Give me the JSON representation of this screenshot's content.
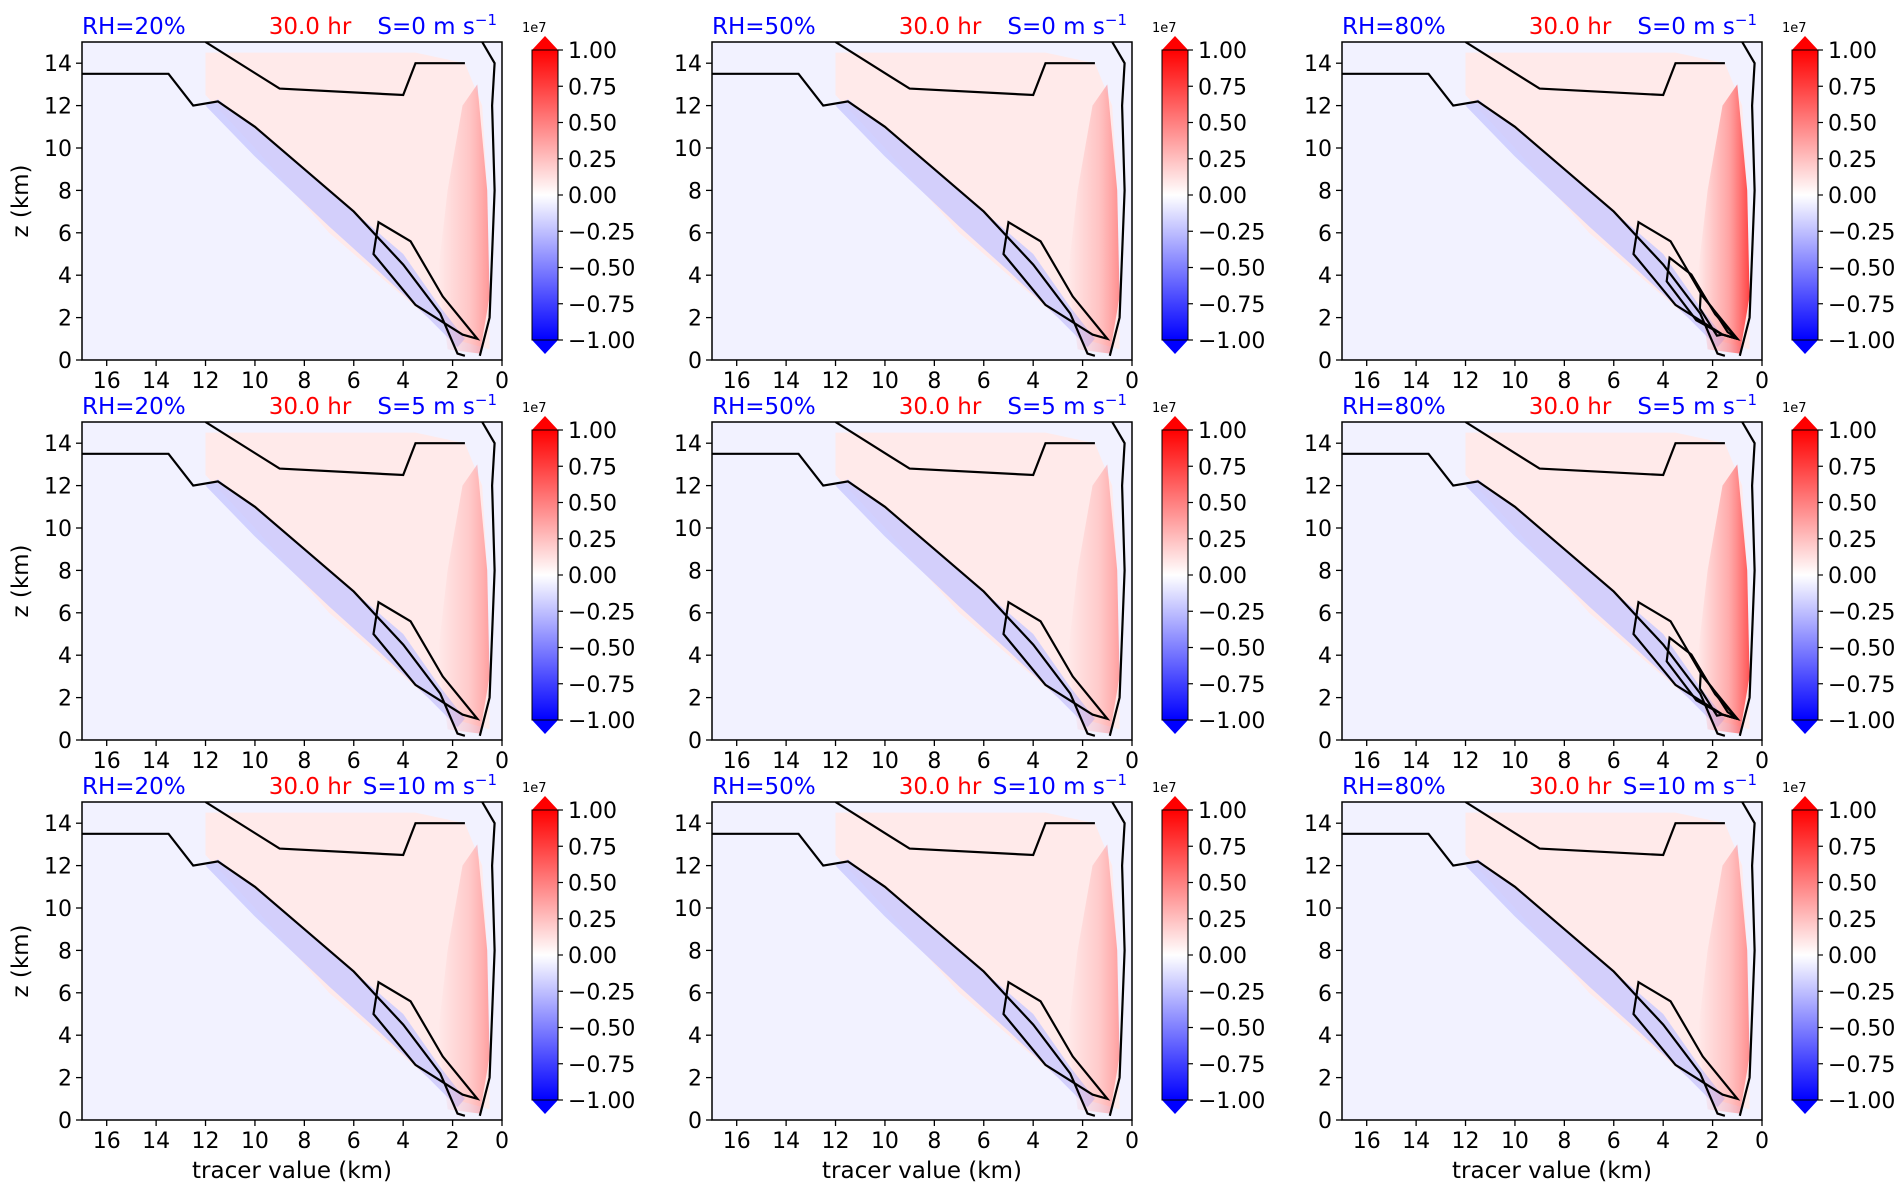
{
  "figure": {
    "ylabel": "z (km)",
    "xlabel": "tracer value (km)",
    "colorbar_multiplier": "1e7",
    "colorbar_ticks": [
      "1.00",
      "0.75",
      "0.50",
      "0.25",
      "0.00",
      "−0.25",
      "−0.50",
      "−0.75",
      "−1.00"
    ],
    "colors": {
      "positive": "#ff0000",
      "negative": "#0000ff",
      "neutral": "#ffffff",
      "label_blue": "#0000ff",
      "label_red": "#ff0000"
    }
  },
  "chart_data": [
    {
      "type": "heatmap",
      "colormap": "bwr",
      "rh": "RH=20%",
      "time": "30.0 hr",
      "shear": "S=0 m s",
      "shear_exp": "−1",
      "xlim": [
        17,
        0
      ],
      "ylim": [
        0,
        15
      ],
      "xticks": [
        "16",
        "14",
        "12",
        "10",
        "8",
        "6",
        "4",
        "2",
        "0"
      ],
      "yticks": [
        "0",
        "2",
        "4",
        "6",
        "8",
        "10",
        "12",
        "14"
      ],
      "vlim": [
        -1.0,
        1.0
      ]
    },
    {
      "type": "heatmap",
      "colormap": "bwr",
      "rh": "RH=50%",
      "time": "30.0 hr",
      "shear": "S=0 m s",
      "shear_exp": "−1",
      "xlim": [
        17,
        0
      ],
      "ylim": [
        0,
        15
      ],
      "xticks": [
        "16",
        "14",
        "12",
        "10",
        "8",
        "6",
        "4",
        "2",
        "0"
      ],
      "yticks": [
        "0",
        "2",
        "4",
        "6",
        "8",
        "10",
        "12",
        "14"
      ],
      "vlim": [
        -1.0,
        1.0
      ]
    },
    {
      "type": "heatmap",
      "colormap": "bwr",
      "rh": "RH=80%",
      "time": "30.0 hr",
      "shear": "S=0 m s",
      "shear_exp": "−1",
      "xlim": [
        17,
        0
      ],
      "ylim": [
        0,
        15
      ],
      "xticks": [
        "16",
        "14",
        "12",
        "10",
        "8",
        "6",
        "4",
        "2",
        "0"
      ],
      "yticks": [
        "0",
        "2",
        "4",
        "6",
        "8",
        "10",
        "12",
        "14"
      ],
      "vlim": [
        -1.0,
        1.0
      ]
    },
    {
      "type": "heatmap",
      "colormap": "bwr",
      "rh": "RH=20%",
      "time": "30.0 hr",
      "shear": "S=5 m s",
      "shear_exp": "−1",
      "xlim": [
        17,
        0
      ],
      "ylim": [
        0,
        15
      ],
      "xticks": [
        "16",
        "14",
        "12",
        "10",
        "8",
        "6",
        "4",
        "2",
        "0"
      ],
      "yticks": [
        "0",
        "2",
        "4",
        "6",
        "8",
        "10",
        "12",
        "14"
      ],
      "vlim": [
        -1.0,
        1.0
      ]
    },
    {
      "type": "heatmap",
      "colormap": "bwr",
      "rh": "RH=50%",
      "time": "30.0 hr",
      "shear": "S=5 m s",
      "shear_exp": "−1",
      "xlim": [
        17,
        0
      ],
      "ylim": [
        0,
        15
      ],
      "xticks": [
        "16",
        "14",
        "12",
        "10",
        "8",
        "6",
        "4",
        "2",
        "0"
      ],
      "yticks": [
        "0",
        "2",
        "4",
        "6",
        "8",
        "10",
        "12",
        "14"
      ],
      "vlim": [
        -1.0,
        1.0
      ]
    },
    {
      "type": "heatmap",
      "colormap": "bwr",
      "rh": "RH=80%",
      "time": "30.0 hr",
      "shear": "S=5 m s",
      "shear_exp": "−1",
      "xlim": [
        17,
        0
      ],
      "ylim": [
        0,
        15
      ],
      "xticks": [
        "16",
        "14",
        "12",
        "10",
        "8",
        "6",
        "4",
        "2",
        "0"
      ],
      "yticks": [
        "0",
        "2",
        "4",
        "6",
        "8",
        "10",
        "12",
        "14"
      ],
      "vlim": [
        -1.0,
        1.0
      ]
    },
    {
      "type": "heatmap",
      "colormap": "bwr",
      "rh": "RH=20%",
      "time": "30.0 hr",
      "shear": "S=10 m s",
      "shear_exp": "−1",
      "xlim": [
        17,
        0
      ],
      "ylim": [
        0,
        15
      ],
      "xticks": [
        "16",
        "14",
        "12",
        "10",
        "8",
        "6",
        "4",
        "2",
        "0"
      ],
      "yticks": [
        "0",
        "2",
        "4",
        "6",
        "8",
        "10",
        "12",
        "14"
      ],
      "vlim": [
        -1.0,
        1.0
      ]
    },
    {
      "type": "heatmap",
      "colormap": "bwr",
      "rh": "RH=50%",
      "time": "30.0 hr",
      "shear": "S=10 m s",
      "shear_exp": "−1",
      "xlim": [
        17,
        0
      ],
      "ylim": [
        0,
        15
      ],
      "xticks": [
        "16",
        "14",
        "12",
        "10",
        "8",
        "6",
        "4",
        "2",
        "0"
      ],
      "yticks": [
        "0",
        "2",
        "4",
        "6",
        "8",
        "10",
        "12",
        "14"
      ],
      "vlim": [
        -1.0,
        1.0
      ]
    },
    {
      "type": "heatmap",
      "colormap": "bwr",
      "rh": "RH=80%",
      "time": "30.0 hr",
      "shear": "S=10 m s",
      "shear_exp": "−1",
      "xlim": [
        17,
        0
      ],
      "ylim": [
        0,
        15
      ],
      "xticks": [
        "16",
        "14",
        "12",
        "10",
        "8",
        "6",
        "4",
        "2",
        "0"
      ],
      "yticks": [
        "0",
        "2",
        "4",
        "6",
        "8",
        "10",
        "12",
        "14"
      ],
      "vlim": [
        -1.0,
        1.0
      ]
    }
  ]
}
